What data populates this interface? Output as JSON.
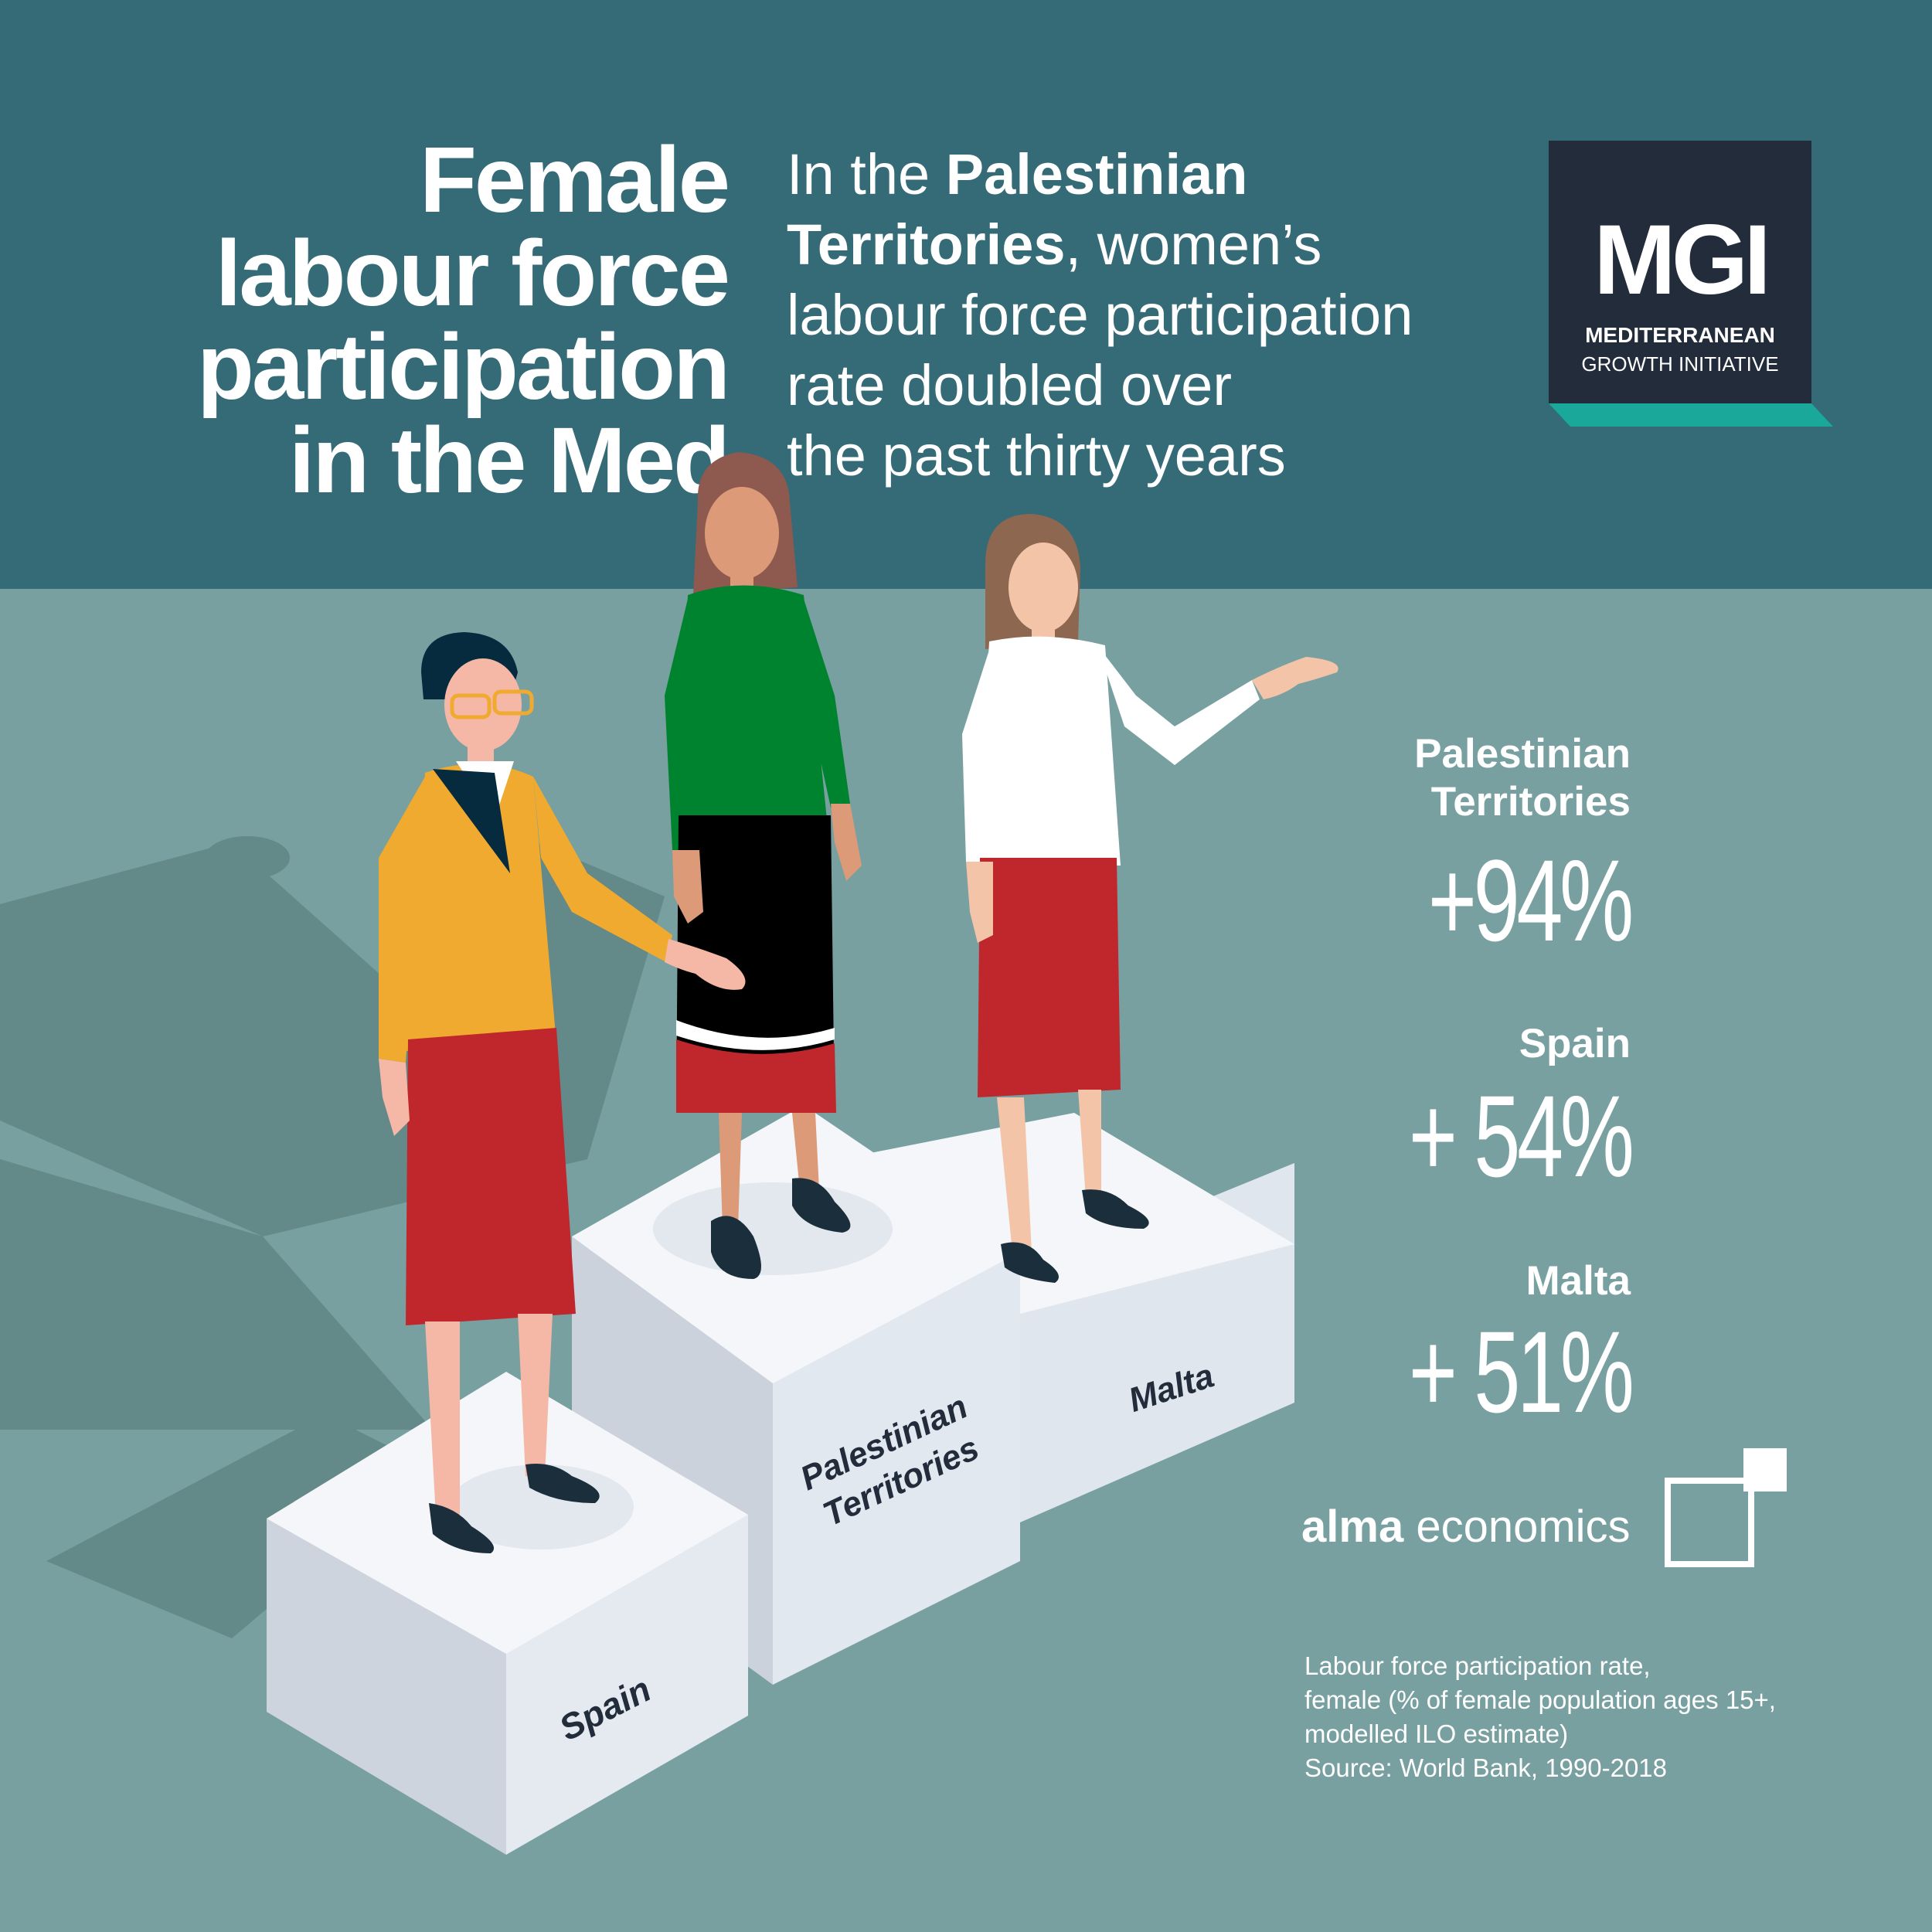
{
  "title": {
    "lines": [
      "Female",
      "labour force",
      "participation",
      "in the Med"
    ]
  },
  "subtitle": {
    "line1_pre": "In the ",
    "line1_bold": "Palestinian",
    "line2_bold": "Territories",
    "line2_post": ", women’s",
    "line3": "labour force participation",
    "line4": "rate doubled over",
    "line5": "the past thirty years"
  },
  "logo": {
    "mark": "MGI",
    "line1": "MEDITERRANEAN",
    "line2": "GROWTH INITIATIVE"
  },
  "stats": [
    {
      "country_line1": "Palestinian",
      "country_line2": "Territories",
      "value": "+94%"
    },
    {
      "country_line1": "Spain",
      "value": "+ 54%"
    },
    {
      "country_line1": "Malta",
      "value": "+ 51%"
    }
  ],
  "podium_labels": {
    "spain": "Spain",
    "palestinian_line1": "Palestinian",
    "palestinian_line2": "Territories",
    "malta": "Malta"
  },
  "brand": {
    "bold": "alma",
    "rest": " economics"
  },
  "source": {
    "line1": "Labour force participation rate,",
    "line2": "female (% of female population ages 15+,",
    "line3": "modelled ILO estimate)",
    "line4": "Source: World Bank, 1990-2018"
  },
  "colors": {
    "header": "#346b77",
    "background": "#78a0a1",
    "logo_bg": "#232c3b",
    "logo_accent": "#19a899",
    "skirt_red": "#bf272d",
    "jacket_yellow": "#efaa2f",
    "sweater_green": "#00832f"
  }
}
